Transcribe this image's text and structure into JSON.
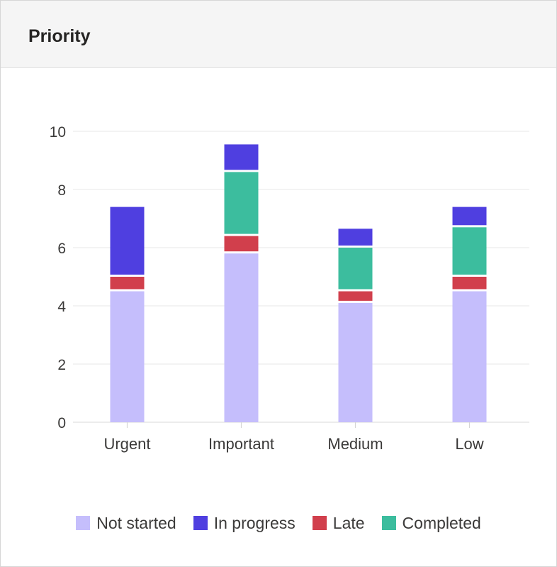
{
  "card": {
    "title": "Priority"
  },
  "chart_data": {
    "type": "bar",
    "stacked": true,
    "categories": [
      "Urgent",
      "Important",
      "Medium",
      "Low"
    ],
    "series": [
      {
        "name": "Not started",
        "color": "#c5befc",
        "values": [
          4.5,
          5.8,
          4.1,
          4.5
        ]
      },
      {
        "name": "Late",
        "color": "#d13f4c",
        "values": [
          0.5,
          0.6,
          0.4,
          0.5
        ]
      },
      {
        "name": "Completed",
        "color": "#3cbd9e",
        "values": [
          0,
          2.2,
          1.5,
          1.7
        ]
      },
      {
        "name": "In progress",
        "color": "#4f3fe0",
        "values": [
          2.4,
          0.95,
          0.65,
          0.7
        ]
      }
    ],
    "legend_order": [
      "Not started",
      "In progress",
      "Late",
      "Completed"
    ],
    "ylim": [
      0,
      10
    ],
    "yticks": [
      0,
      2,
      4,
      6,
      8,
      10
    ],
    "grid": true,
    "legend_position": "bottom",
    "title": "",
    "xlabel": "",
    "ylabel": ""
  }
}
